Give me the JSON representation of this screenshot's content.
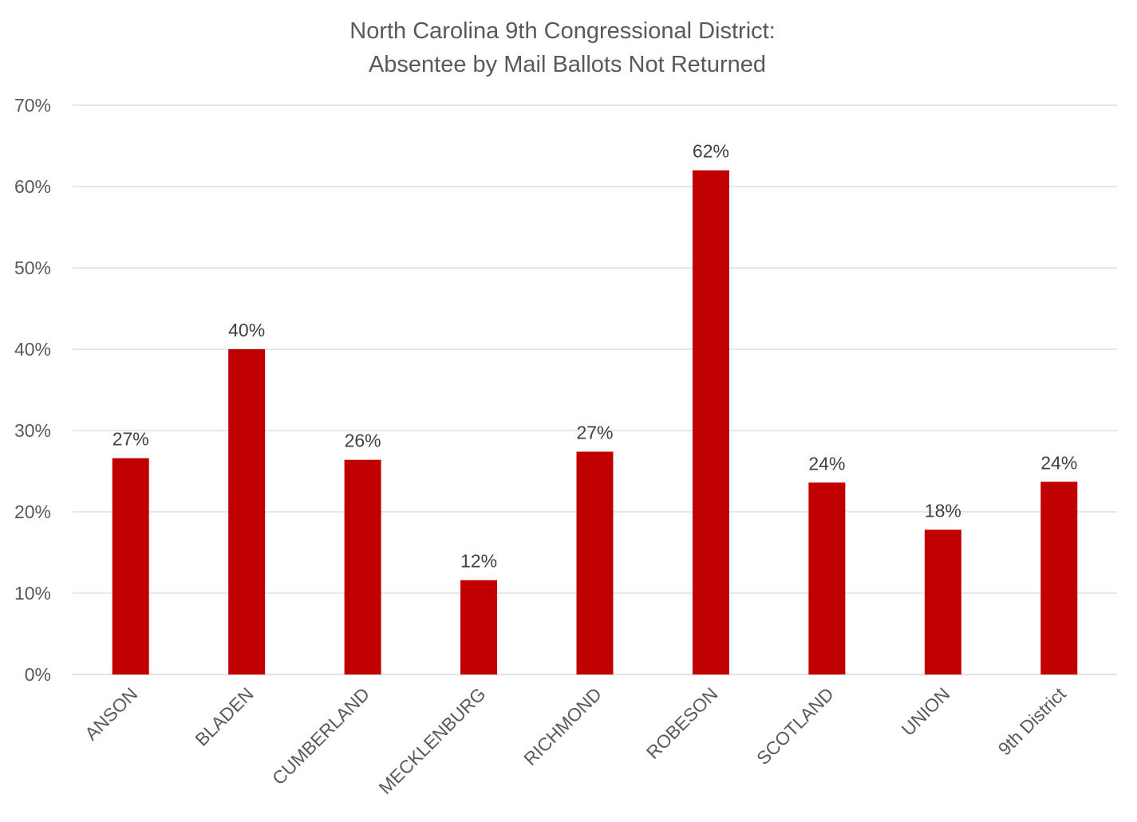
{
  "chart_data": {
    "type": "bar",
    "title": "North Carolina 9th Congressional District:",
    "subtitle": "Absentee by Mail Ballots Not Returned",
    "xlabel": "",
    "ylabel": "",
    "categories": [
      "ANSON",
      "BLADEN",
      "CUMBERLAND",
      "MECKLENBURG",
      "RICHMOND",
      "ROBESON",
      "SCOTLAND",
      "UNION",
      "9th District"
    ],
    "values": [
      26.6,
      40.0,
      26.4,
      11.6,
      27.4,
      62.0,
      23.6,
      17.8,
      23.7
    ],
    "data_labels": [
      "27%",
      "40%",
      "26%",
      "12%",
      "27%",
      "62%",
      "24%",
      "18%",
      "24%"
    ],
    "ylim": [
      0,
      70
    ],
    "yticks": [
      0,
      10,
      20,
      30,
      40,
      50,
      60,
      70
    ],
    "ytick_labels": [
      "0%",
      "10%",
      "20%",
      "30%",
      "40%",
      "50%",
      "60%",
      "70%"
    ],
    "grid": true,
    "legend": "none",
    "colors": {
      "bar": "#c00000",
      "grid": "#d9d9d9",
      "text": "#595959"
    }
  }
}
